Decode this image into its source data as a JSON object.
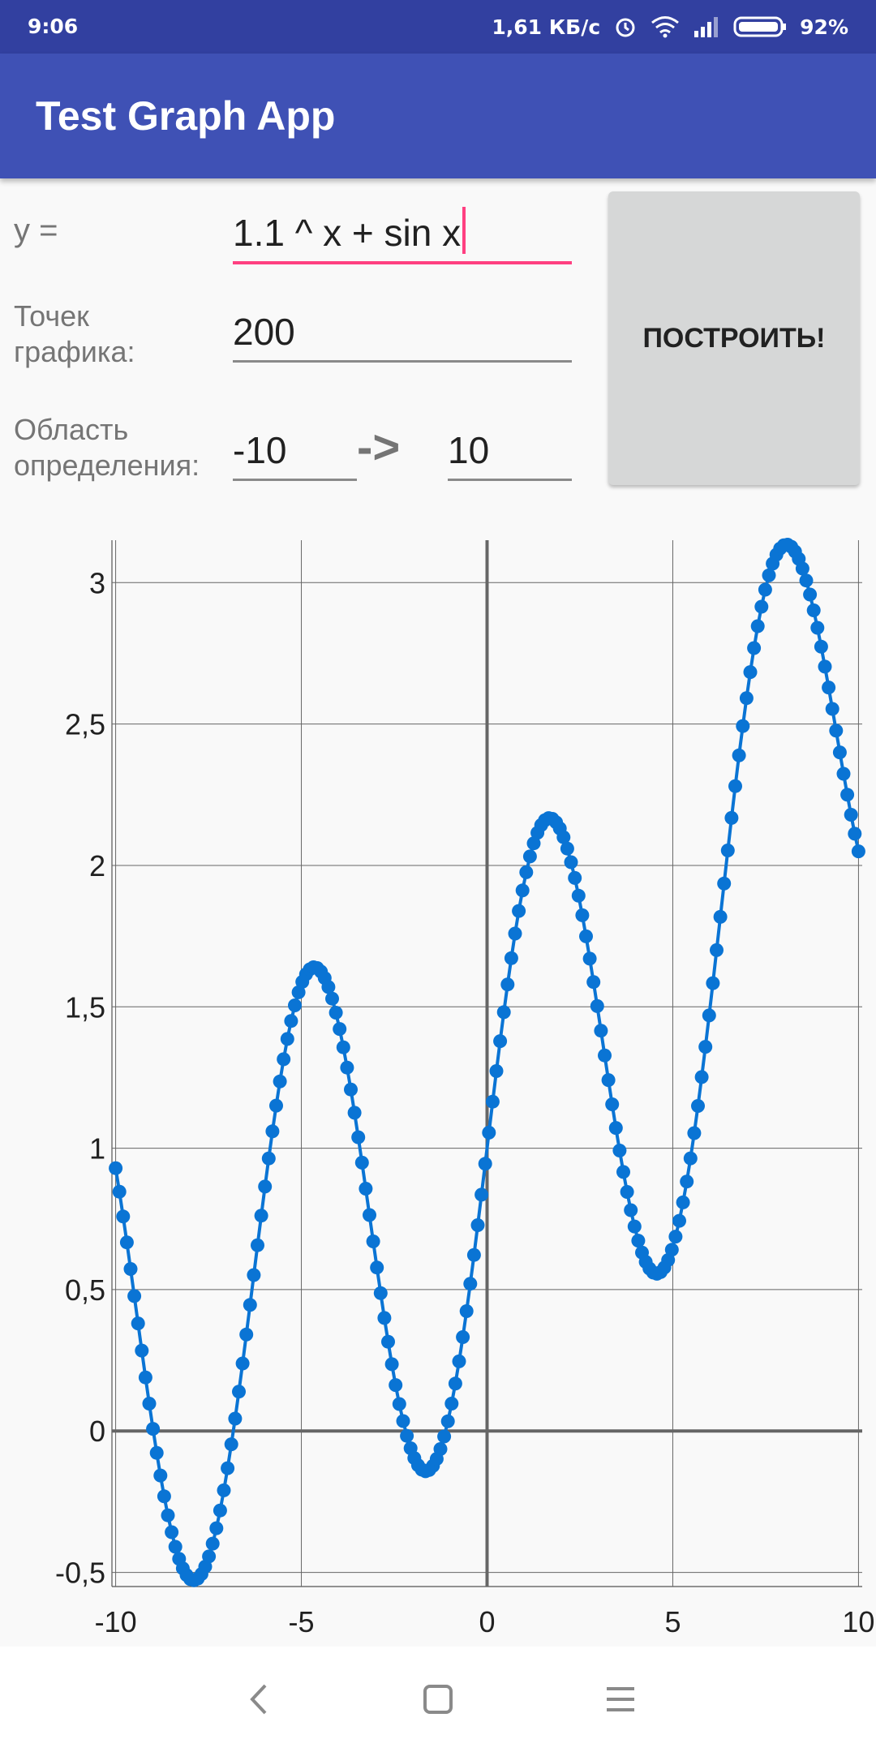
{
  "status_bar": {
    "time": "9:06",
    "network_speed": "1,61 КБ/с",
    "battery": "92%",
    "icons": [
      "alarm-icon",
      "wifi-icon",
      "signal-icon",
      "battery-icon"
    ]
  },
  "app_bar": {
    "title": "Test Graph App",
    "color": "#3f51b5"
  },
  "form": {
    "function_label": "y =",
    "function_value": "1.1 ^ x + sin x",
    "points_label_line1": "Точек",
    "points_label_line2": "графика:",
    "points_value": "200",
    "domain_label_line1": "Область",
    "domain_label_line2": "определения:",
    "domain_from": "-10",
    "domain_arrow": "->",
    "domain_to": "10",
    "build_button": "ПОСТРОИТЬ!"
  },
  "chart_data": {
    "type": "line",
    "function": "1.1 ^ x + sin x",
    "x_range": [
      -10,
      10
    ],
    "point_count": 200,
    "xlim": [
      -10.1,
      10.1
    ],
    "ylim": [
      -0.55,
      3.15
    ],
    "x_ticks": [
      -10,
      -5,
      0,
      5,
      10
    ],
    "x_tick_labels": [
      "-10",
      "-5",
      "0",
      "5",
      "10"
    ],
    "y_ticks": [
      -0.5,
      0,
      0.5,
      1,
      1.5,
      2,
      2.5,
      3
    ],
    "y_tick_labels": [
      "-0,5",
      "0",
      "0,5",
      "1",
      "1,5",
      "2",
      "2,5",
      "3"
    ],
    "grid": true,
    "series_color": "#0a74d4"
  },
  "nav_bar": {
    "icons": [
      "back-icon",
      "home-icon",
      "menu-icon"
    ]
  }
}
